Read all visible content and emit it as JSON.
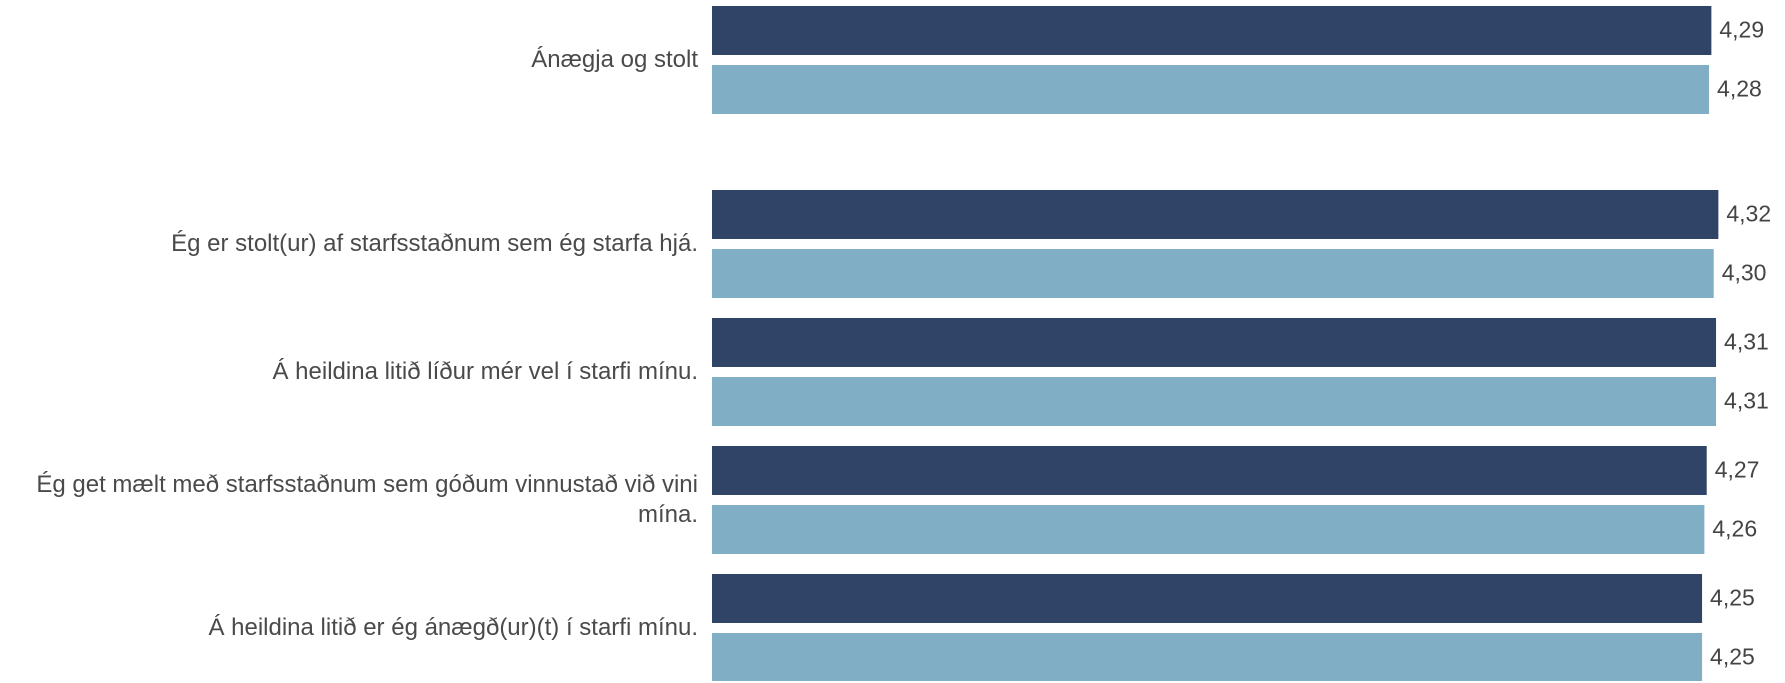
{
  "chart_data": {
    "type": "bar",
    "orientation": "horizontal",
    "categories": [
      "Ánægja og stolt",
      "Ég er stolt(ur) af starfsstaðnum sem ég starfa hjá.",
      "Á heildina litið líður mér vel í starfi mínu.",
      "Ég get mælt með starfsstaðnum sem góðum vinnustað við vini mína.",
      "Á heildina litið er ég ánægð(ur)(t) í starfi mínu."
    ],
    "series": [
      {
        "color": "#2f4466",
        "values": [
          4.29,
          4.32,
          4.31,
          4.27,
          4.25
        ],
        "value_labels": [
          "4,29",
          "4,32",
          "4,31",
          "4,27",
          "4,25"
        ]
      },
      {
        "color": "#80afc5",
        "values": [
          4.28,
          4.3,
          4.31,
          4.26,
          4.25
        ],
        "value_labels": [
          "4,28",
          "4,30",
          "4,31",
          "4,26",
          "4,25"
        ]
      }
    ],
    "xlim": [
      0,
      4.4
    ]
  }
}
